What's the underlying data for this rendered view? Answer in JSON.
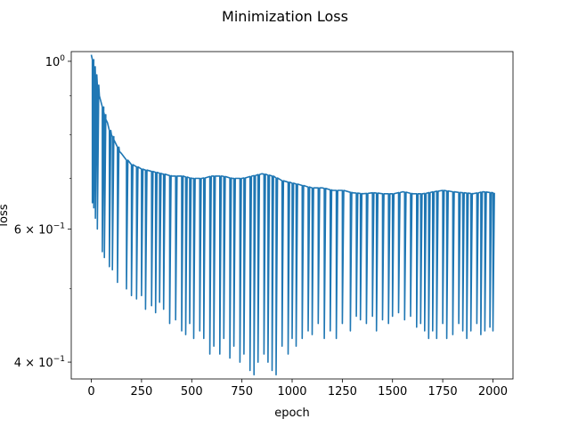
{
  "chart_data": {
    "type": "line",
    "title": "Minimization Loss",
    "xlabel": "epoch",
    "ylabel": "loss",
    "xlim": [
      -100,
      2100
    ],
    "ylim": [
      0.38,
      1.03
    ],
    "yscale": "log",
    "grid": false,
    "x_ticks": [
      0,
      250,
      500,
      750,
      1000,
      1250,
      1500,
      1750,
      2000
    ],
    "x_tick_labels": [
      "0",
      "250",
      "500",
      "750",
      "1000",
      "1250",
      "1500",
      "1750",
      "2000"
    ],
    "y_major_ticks": [
      1.0,
      0.6,
      0.4
    ],
    "y_major_labels": [
      {
        "base": "10",
        "exp": "0",
        "prefix": ""
      },
      {
        "base": "10",
        "exp": "−1",
        "prefix": "6 × "
      },
      {
        "base": "10",
        "exp": "−1",
        "prefix": "4 × "
      }
    ],
    "y_minor_ticks": [
      0.9,
      0.8,
      0.7,
      0.5
    ],
    "series": [
      {
        "color": "#1f77b4",
        "x": [
          0,
          10,
          20,
          30,
          40,
          50,
          60,
          70,
          80,
          90,
          100,
          110,
          120,
          130,
          140,
          150,
          175,
          200,
          250,
          300,
          350,
          400,
          450,
          500,
          550,
          600,
          650,
          700,
          750,
          800,
          850,
          900,
          950,
          1000,
          1050,
          1100,
          1150,
          1200,
          1250,
          1300,
          1350,
          1400,
          1450,
          1500,
          1550,
          1600,
          1650,
          1700,
          1750,
          1800,
          1850,
          1900,
          1950,
          2000
        ],
        "upper": [
          1.02,
          0.99,
          0.96,
          0.93,
          0.9,
          0.88,
          0.86,
          0.84,
          0.83,
          0.81,
          0.8,
          0.79,
          0.78,
          0.77,
          0.76,
          0.755,
          0.74,
          0.73,
          0.72,
          0.715,
          0.71,
          0.705,
          0.705,
          0.7,
          0.7,
          0.705,
          0.705,
          0.7,
          0.7,
          0.705,
          0.71,
          0.705,
          0.695,
          0.69,
          0.685,
          0.68,
          0.68,
          0.675,
          0.675,
          0.67,
          0.668,
          0.67,
          0.668,
          0.668,
          0.672,
          0.668,
          0.668,
          0.672,
          0.675,
          0.672,
          0.67,
          0.668,
          0.672,
          0.67
        ],
        "drops": [
          [
            5,
            0.65
          ],
          [
            12,
            0.64
          ],
          [
            20,
            0.62
          ],
          [
            30,
            0.6
          ],
          [
            55,
            0.56
          ],
          [
            65,
            0.55
          ],
          [
            90,
            0.535
          ],
          [
            105,
            0.53
          ],
          [
            130,
            0.51
          ],
          [
            175,
            0.5
          ],
          [
            200,
            0.49
          ],
          [
            225,
            0.485
          ],
          [
            250,
            0.49
          ],
          [
            270,
            0.47
          ],
          [
            300,
            0.475
          ],
          [
            320,
            0.465
          ],
          [
            340,
            0.48
          ],
          [
            360,
            0.47
          ],
          [
            390,
            0.45
          ],
          [
            420,
            0.455
          ],
          [
            450,
            0.44
          ],
          [
            470,
            0.435
          ],
          [
            490,
            0.45
          ],
          [
            510,
            0.43
          ],
          [
            540,
            0.44
          ],
          [
            560,
            0.43
          ],
          [
            590,
            0.41
          ],
          [
            610,
            0.42
          ],
          [
            640,
            0.41
          ],
          [
            660,
            0.43
          ],
          [
            690,
            0.405
          ],
          [
            710,
            0.42
          ],
          [
            740,
            0.4
          ],
          [
            760,
            0.41
          ],
          [
            790,
            0.39
          ],
          [
            810,
            0.385
          ],
          [
            830,
            0.4
          ],
          [
            860,
            0.41
          ],
          [
            880,
            0.4
          ],
          [
            900,
            0.39
          ],
          [
            920,
            0.385
          ],
          [
            950,
            0.42
          ],
          [
            980,
            0.41
          ],
          [
            1000,
            0.43
          ],
          [
            1020,
            0.42
          ],
          [
            1050,
            0.43
          ],
          [
            1080,
            0.44
          ],
          [
            1100,
            0.435
          ],
          [
            1130,
            0.45
          ],
          [
            1160,
            0.43
          ],
          [
            1190,
            0.44
          ],
          [
            1220,
            0.43
          ],
          [
            1250,
            0.45
          ],
          [
            1290,
            0.44
          ],
          [
            1320,
            0.46
          ],
          [
            1340,
            0.455
          ],
          [
            1370,
            0.45
          ],
          [
            1400,
            0.46
          ],
          [
            1420,
            0.44
          ],
          [
            1450,
            0.455
          ],
          [
            1480,
            0.45
          ],
          [
            1500,
            0.46
          ],
          [
            1530,
            0.465
          ],
          [
            1560,
            0.455
          ],
          [
            1590,
            0.46
          ],
          [
            1620,
            0.445
          ],
          [
            1640,
            0.45
          ],
          [
            1660,
            0.44
          ],
          [
            1680,
            0.43
          ],
          [
            1700,
            0.44
          ],
          [
            1720,
            0.43
          ],
          [
            1750,
            0.45
          ],
          [
            1770,
            0.43
          ],
          [
            1800,
            0.435
          ],
          [
            1830,
            0.45
          ],
          [
            1850,
            0.44
          ],
          [
            1870,
            0.43
          ],
          [
            1890,
            0.44
          ],
          [
            1920,
            0.45
          ],
          [
            1940,
            0.435
          ],
          [
            1960,
            0.44
          ],
          [
            1985,
            0.445
          ],
          [
            2000,
            0.44
          ]
        ]
      }
    ]
  }
}
